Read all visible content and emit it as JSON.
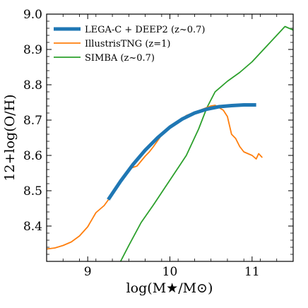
{
  "chart_data": {
    "type": "line",
    "xlabel": "log(M★/M⊙)",
    "ylabel": "12+log(O/H)",
    "xlim": [
      8.5,
      11.5
    ],
    "ylim": [
      8.3,
      9.0
    ],
    "x_ticks": [
      9,
      10,
      11
    ],
    "y_ticks": [
      8.4,
      8.5,
      8.6,
      8.7,
      8.8,
      8.9,
      9.0
    ],
    "x_tick_labels": [
      "9",
      "10",
      "11"
    ],
    "y_tick_labels": [
      "8.4",
      "8.5",
      "8.6",
      "8.7",
      "8.8",
      "8.9",
      "9.0"
    ],
    "legend_position": "top-left",
    "series": [
      {
        "name": "LEGA-C + DEEP2 (z~0.7)",
        "color": "#1f77b4",
        "x": [
          9.25,
          9.4,
          9.55,
          9.7,
          9.85,
          10.0,
          10.15,
          10.3,
          10.45,
          10.6,
          10.75,
          10.9,
          11.05
        ],
        "y": [
          8.475,
          8.527,
          8.574,
          8.615,
          8.65,
          8.68,
          8.703,
          8.72,
          8.731,
          8.738,
          8.741,
          8.743,
          8.743
        ]
      },
      {
        "name": "IllustrisTNG (z=1)",
        "color": "#ff7f0e",
        "x": [
          8.5,
          8.6,
          8.7,
          8.8,
          8.9,
          9.0,
          9.1,
          9.15,
          9.2,
          9.3,
          9.4,
          9.5,
          9.6,
          9.7,
          9.75,
          9.8,
          9.9,
          10.0,
          10.1,
          10.2,
          10.3,
          10.4,
          10.5,
          10.55,
          10.6,
          10.65,
          10.7,
          10.72,
          10.75,
          10.8,
          10.85,
          10.9,
          10.95,
          11.0,
          11.05,
          11.08,
          11.12
        ],
        "y": [
          8.335,
          8.338,
          8.345,
          8.355,
          8.372,
          8.398,
          8.438,
          8.448,
          8.458,
          8.49,
          8.53,
          8.562,
          8.57,
          8.598,
          8.61,
          8.625,
          8.658,
          8.68,
          8.695,
          8.713,
          8.722,
          8.731,
          8.74,
          8.742,
          8.735,
          8.728,
          8.71,
          8.69,
          8.66,
          8.648,
          8.625,
          8.61,
          8.605,
          8.6,
          8.59,
          8.605,
          8.595
        ]
      },
      {
        "name": "SIMBA (z~0.7)",
        "color": "#2ca02c",
        "x": [
          9.4,
          9.5,
          9.65,
          9.8,
          10.0,
          10.2,
          10.35,
          10.45,
          10.55,
          10.7,
          10.85,
          11.0,
          11.2,
          11.4,
          11.5
        ],
        "y": [
          8.3,
          8.345,
          8.41,
          8.46,
          8.53,
          8.6,
          8.675,
          8.735,
          8.78,
          8.81,
          8.835,
          8.865,
          8.915,
          8.965,
          8.955
        ]
      }
    ]
  }
}
